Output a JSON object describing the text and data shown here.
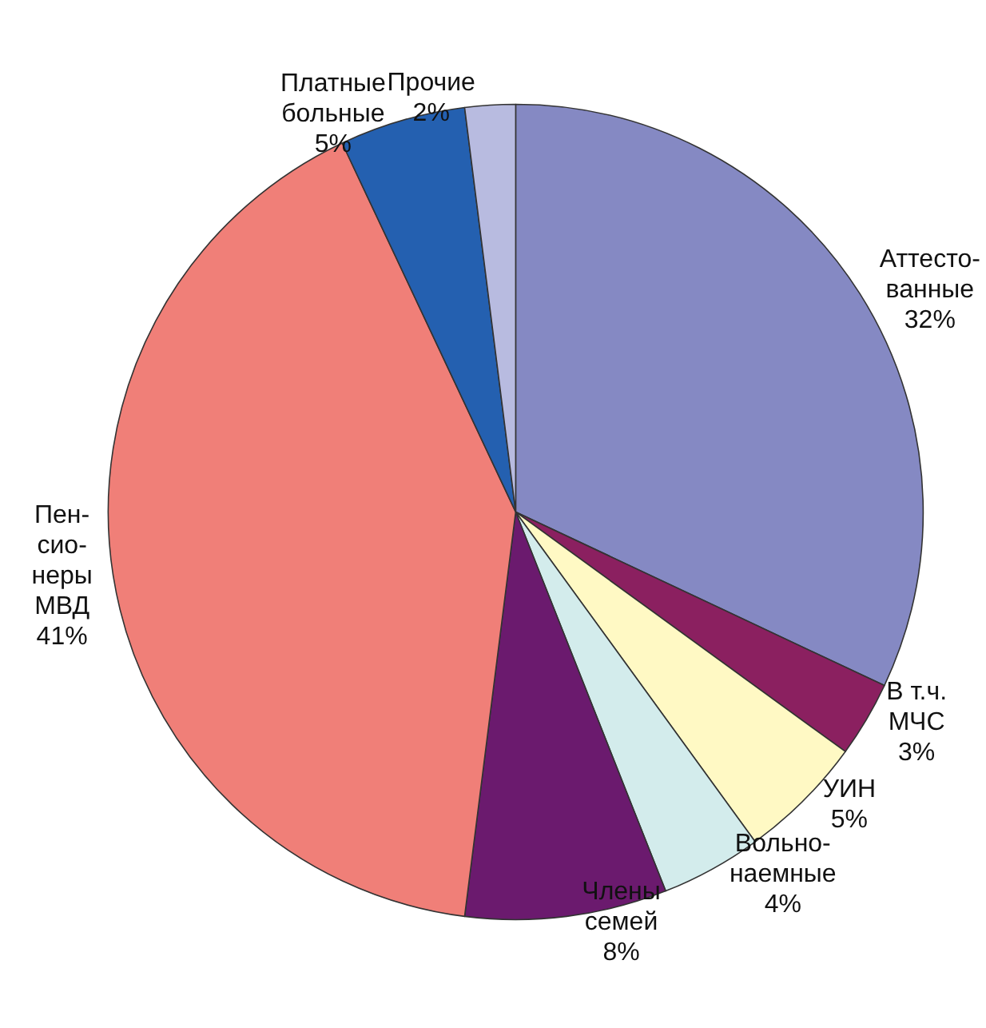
{
  "chart_data": {
    "type": "pie",
    "categories": [
      "Аттесто-\nванные",
      "В т.ч.\nМЧС",
      "УИН",
      "Вольно-\nнаемные",
      "Члены\nсемей",
      "Пен-\nсио-\nнеры\nМВД",
      "Платные\nбольные",
      "Прочие"
    ],
    "values": [
      32,
      3,
      5,
      4,
      8,
      41,
      5,
      2
    ],
    "colors": [
      "#8589c3",
      "#8b2060",
      "#fff9c4",
      "#d3ecec",
      "#6b1a6e",
      "#f07f78",
      "#2460b0",
      "#b8bbe0"
    ],
    "value_labels": [
      "32%",
      "3%",
      "5%",
      "4%",
      "8%",
      "41%",
      "5%",
      "2%"
    ],
    "legend": false
  }
}
